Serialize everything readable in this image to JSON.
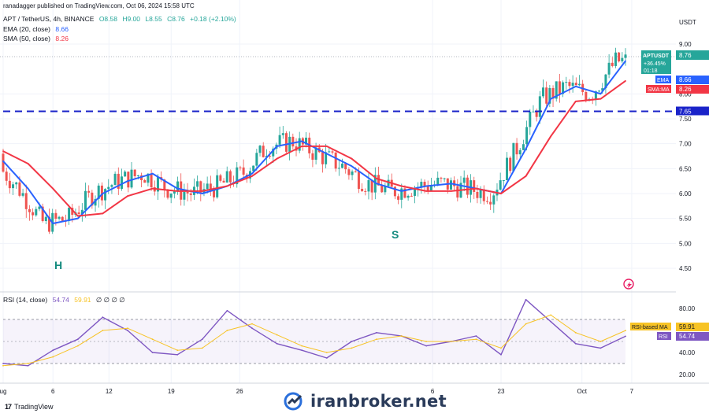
{
  "publisher_line": "ranadagger published on TradingView.com, Oct 06, 2024 15:58 UTC",
  "legend": {
    "symbol": "APT / TetherUS, 4h, BINANCE",
    "ohlc": {
      "o": "O8.58",
      "h": "H9.00",
      "l": "L8.55",
      "c": "C8.76",
      "chg": "+0.18 (+2.10%)"
    },
    "ema_label": "EMA (20, close)",
    "ema_value": "8.66",
    "sma_label": "SMA (50, close)",
    "sma_value": "8.26",
    "rsi_label": "RSI (14, close)",
    "rsi_value": "54.74",
    "rsi_ma_value": "59.91",
    "rsi_extra": "∅ ∅ ∅ ∅"
  },
  "price_axis": {
    "currency": "USDT",
    "ticks": [
      "9.00",
      "8.00",
      "7.50",
      "7.00",
      "6.50",
      "6.00",
      "5.50",
      "5.00",
      "4.50"
    ]
  },
  "price_tags": {
    "symbol": "APTUSDT",
    "price": "8.76",
    "change": "+36.45%",
    "countdown": "01:18",
    "ema_tag": "EMA",
    "ema_val": "8.66",
    "sma_tag": "SMA:MA",
    "sma_val": "8.26",
    "level": "7.65"
  },
  "rsi_axis": {
    "ticks": [
      "80.00",
      "40.00",
      "20.00"
    ],
    "ma_tag": "RSI-based MA",
    "ma_val": "59.91",
    "rsi_tag": "RSI",
    "rsi_val": "54.74"
  },
  "time_axis": [
    "ug",
    "6",
    "12",
    "19",
    "26",
    "6",
    "23",
    "Oct",
    "7"
  ],
  "annotations": {
    "head_label": "H",
    "shoulder_label": "S"
  },
  "watermark": "iranbroker.net",
  "branding": {
    "mark": "17",
    "name": "TradingView"
  },
  "colors": {
    "up": "#26a69a",
    "down": "#ef5350",
    "ema": "#2962ff",
    "sma": "#f23645",
    "rsi": "#7e57c2",
    "rsi_ma": "#f7c325",
    "level": "#1a23c9"
  },
  "chart_data": {
    "type": "line",
    "title": "APT / TetherUS, 4h, BINANCE",
    "ylim": [
      4.2,
      9.5
    ],
    "horizontal_level": 7.65,
    "series": [
      {
        "name": "EMA (20, close)",
        "x": [
          0,
          4,
          8,
          12,
          16,
          20,
          24,
          28,
          32,
          36,
          40,
          44,
          48,
          52,
          56,
          60,
          64,
          68,
          72,
          76,
          80,
          84,
          88,
          92,
          96,
          100
        ],
        "values": [
          6.65,
          6.1,
          5.4,
          5.5,
          6.0,
          6.25,
          6.4,
          6.1,
          6.0,
          6.15,
          6.4,
          6.95,
          7.05,
          6.8,
          6.55,
          6.2,
          6.05,
          6.15,
          6.2,
          6.1,
          6.0,
          6.9,
          7.9,
          8.15,
          8.0,
          8.66
        ]
      },
      {
        "name": "SMA (50, close)",
        "x": [
          0,
          4,
          8,
          12,
          16,
          20,
          24,
          28,
          32,
          36,
          40,
          44,
          48,
          52,
          56,
          60,
          64,
          68,
          72,
          76,
          80,
          84,
          88,
          92,
          96,
          100
        ],
        "values": [
          6.85,
          6.6,
          6.1,
          5.55,
          5.6,
          5.95,
          6.1,
          6.05,
          6.05,
          6.15,
          6.35,
          6.7,
          6.95,
          6.95,
          6.7,
          6.3,
          6.15,
          6.05,
          6.05,
          6.1,
          6.0,
          6.35,
          7.15,
          7.85,
          7.9,
          8.26
        ]
      },
      {
        "name": "RSI (14, close)",
        "x": [
          0,
          4,
          8,
          12,
          16,
          20,
          24,
          28,
          32,
          36,
          40,
          44,
          48,
          52,
          56,
          60,
          64,
          68,
          72,
          76,
          80,
          84,
          88,
          92,
          96,
          100
        ],
        "values": [
          30,
          28,
          42,
          52,
          72,
          60,
          40,
          38,
          52,
          78,
          62,
          48,
          42,
          35,
          50,
          58,
          55,
          46,
          50,
          55,
          38,
          88,
          68,
          48,
          44,
          54.74
        ]
      },
      {
        "name": "RSI-based MA",
        "x": [
          0,
          4,
          8,
          12,
          16,
          20,
          24,
          28,
          32,
          36,
          40,
          44,
          48,
          52,
          56,
          60,
          64,
          68,
          72,
          76,
          80,
          84,
          88,
          92,
          96,
          100
        ],
        "values": [
          28,
          30,
          36,
          46,
          60,
          62,
          52,
          42,
          44,
          60,
          66,
          56,
          46,
          40,
          44,
          52,
          55,
          50,
          50,
          52,
          44,
          66,
          74,
          58,
          50,
          59.91
        ]
      }
    ]
  }
}
